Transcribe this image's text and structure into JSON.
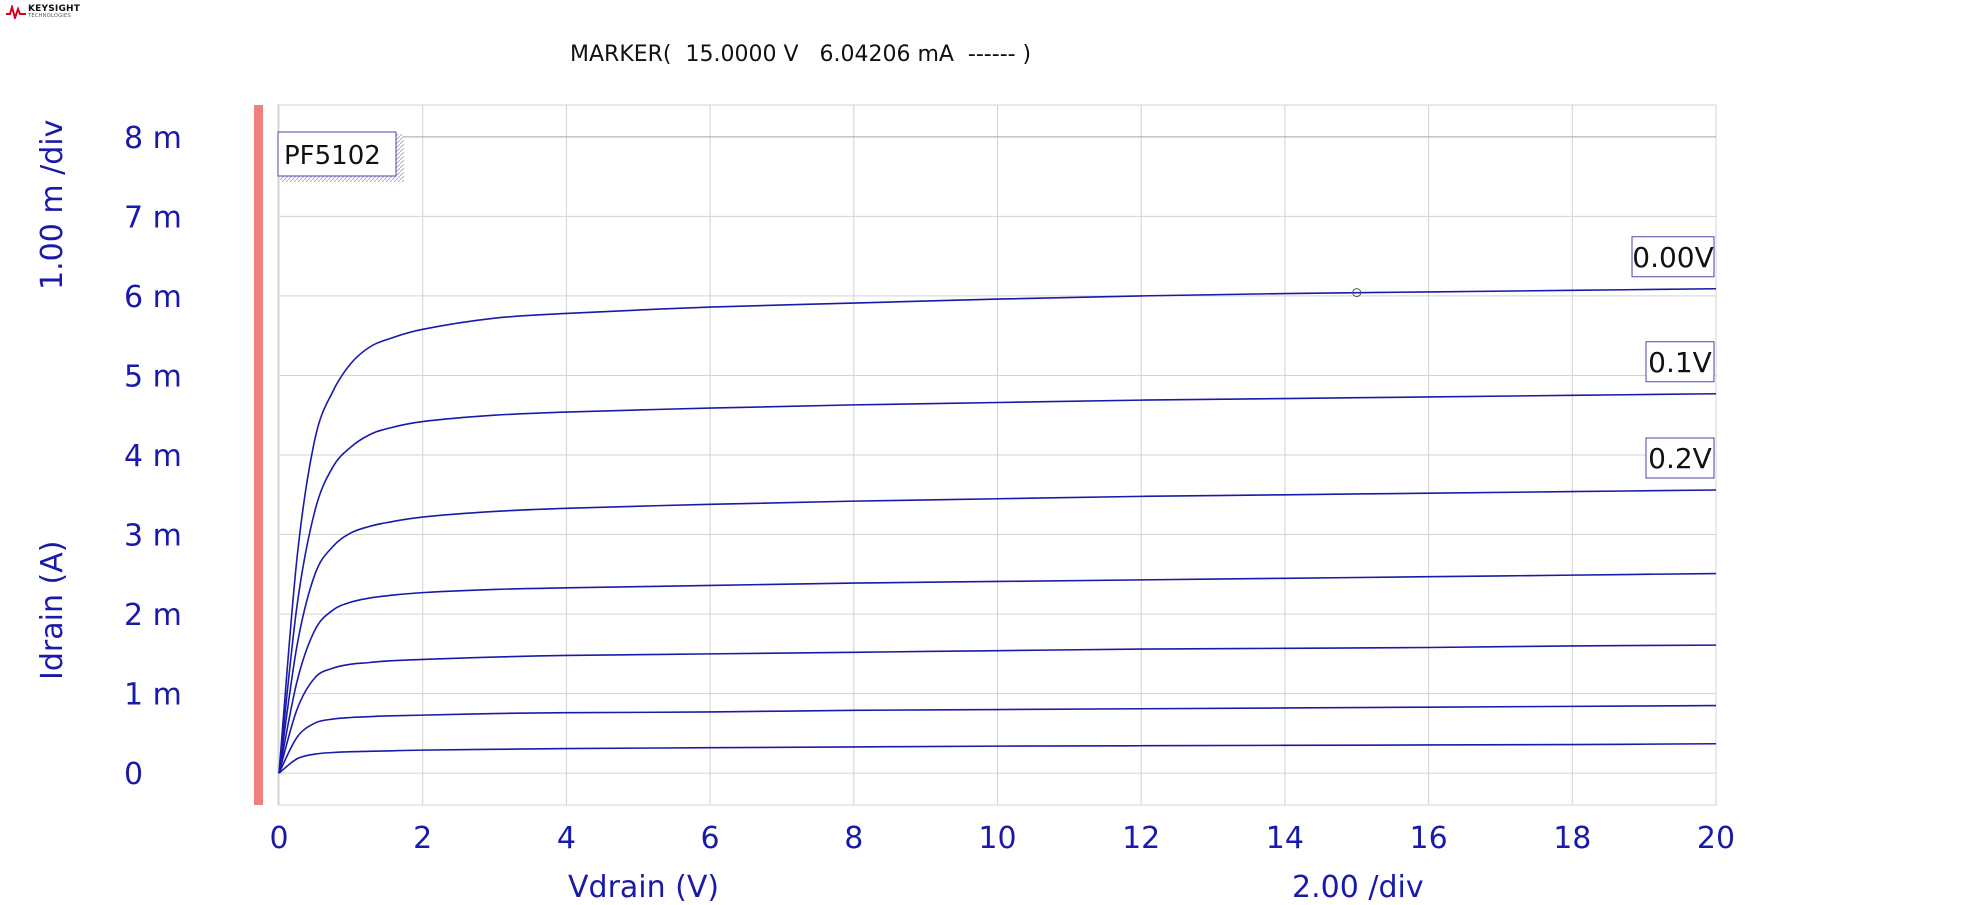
{
  "logo": {
    "name": "KEYSIGHT",
    "subtitle": "TECHNOLOGIES",
    "color": "#d6001c"
  },
  "marker_readout": "MARKER(  15.0000 V   6.04206 mA  ------ )",
  "colors": {
    "trace": "#1a1aaa",
    "axis_text": "#1a1aaa",
    "grid": "#d3d3d3",
    "left_bar": "#f08080"
  },
  "chart_data": {
    "type": "line",
    "device_label": "PF5102",
    "xlabel": "Vdrain (V)",
    "x_div": "2.00  /div",
    "ylabel": "Idrain (A)",
    "y_div": "1.00 m /div",
    "xlim": [
      0,
      20
    ],
    "ylim": [
      -0.4,
      8.4
    ],
    "x_ticks": [
      0,
      2,
      4,
      6,
      8,
      10,
      12,
      14,
      16,
      18,
      20
    ],
    "x_tick_labels": [
      "0",
      "2",
      "4",
      "6",
      "8",
      "10",
      "12",
      "14",
      "16",
      "18",
      "20"
    ],
    "y_ticks": [
      0,
      1,
      2,
      3,
      4,
      5,
      6,
      7,
      8
    ],
    "y_tick_labels": [
      "0",
      "1 m",
      "2 m",
      "3 m",
      "4 m",
      "5 m",
      "6 m",
      "7 m",
      "8 m"
    ],
    "grid": true,
    "marker": {
      "x": 15.0,
      "y": 6.04206
    },
    "series": [
      {
        "name": "0.00V",
        "x": [
          0,
          0.25,
          0.5,
          0.75,
          1,
          1.25,
          1.5,
          2,
          3,
          4,
          6,
          8,
          10,
          12,
          14,
          16,
          18,
          20
        ],
        "y": [
          0,
          2.7,
          4.2,
          4.8,
          5.15,
          5.35,
          5.45,
          5.58,
          5.72,
          5.78,
          5.86,
          5.91,
          5.96,
          6.0,
          6.03,
          6.05,
          6.07,
          6.09
        ]
      },
      {
        "name": "0.1V",
        "x": [
          0,
          0.25,
          0.5,
          0.75,
          1,
          1.25,
          1.5,
          2,
          3,
          4,
          6,
          8,
          10,
          12,
          14,
          16,
          18,
          20
        ],
        "y": [
          0,
          2.1,
          3.3,
          3.85,
          4.1,
          4.25,
          4.33,
          4.42,
          4.5,
          4.54,
          4.59,
          4.63,
          4.66,
          4.69,
          4.71,
          4.73,
          4.75,
          4.77
        ]
      },
      {
        "name": "0.2V",
        "x": [
          0,
          0.25,
          0.5,
          0.75,
          1,
          1.25,
          1.5,
          2,
          3,
          4,
          6,
          8,
          10,
          12,
          14,
          16,
          18,
          20
        ],
        "y": [
          0,
          1.6,
          2.5,
          2.85,
          3.02,
          3.1,
          3.15,
          3.22,
          3.29,
          3.33,
          3.38,
          3.42,
          3.45,
          3.48,
          3.5,
          3.52,
          3.54,
          3.56
        ]
      },
      {
        "x": [
          0,
          0.25,
          0.5,
          0.75,
          1,
          1.25,
          1.5,
          2,
          3,
          4,
          6,
          8,
          10,
          12,
          14,
          16,
          18,
          20
        ],
        "y": [
          0,
          1.15,
          1.8,
          2.05,
          2.15,
          2.2,
          2.23,
          2.27,
          2.31,
          2.33,
          2.36,
          2.39,
          2.41,
          2.43,
          2.45,
          2.47,
          2.49,
          2.51
        ]
      },
      {
        "x": [
          0,
          0.25,
          0.5,
          0.75,
          1,
          1.25,
          1.5,
          2,
          3,
          4,
          6,
          8,
          10,
          12,
          14,
          16,
          18,
          20
        ],
        "y": [
          0,
          0.8,
          1.2,
          1.32,
          1.37,
          1.39,
          1.41,
          1.43,
          1.46,
          1.48,
          1.5,
          1.52,
          1.54,
          1.56,
          1.57,
          1.58,
          1.6,
          1.61
        ]
      },
      {
        "x": [
          0,
          0.25,
          0.5,
          0.75,
          1,
          1.25,
          1.5,
          2,
          3,
          4,
          6,
          8,
          10,
          12,
          14,
          16,
          18,
          20
        ],
        "y": [
          0,
          0.45,
          0.63,
          0.68,
          0.7,
          0.71,
          0.72,
          0.73,
          0.75,
          0.76,
          0.77,
          0.79,
          0.8,
          0.81,
          0.82,
          0.83,
          0.84,
          0.85
        ]
      },
      {
        "x": [
          0,
          0.25,
          0.5,
          0.75,
          1,
          1.25,
          1.5,
          2,
          3,
          4,
          6,
          8,
          10,
          12,
          14,
          16,
          18,
          20
        ],
        "y": [
          0,
          0.18,
          0.24,
          0.26,
          0.27,
          0.275,
          0.28,
          0.29,
          0.3,
          0.31,
          0.32,
          0.33,
          0.34,
          0.345,
          0.35,
          0.355,
          0.36,
          0.37
        ]
      }
    ]
  }
}
